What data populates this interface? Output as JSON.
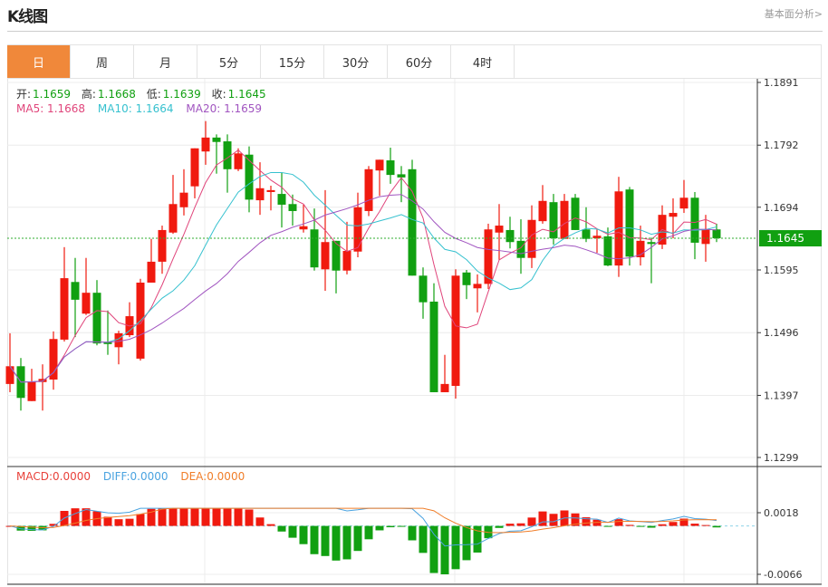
{
  "header": {
    "title": "K线图",
    "link": "基本面分析>"
  },
  "tabs": [
    {
      "label": "日",
      "active": true
    },
    {
      "label": "周"
    },
    {
      "label": "月"
    },
    {
      "label": "5分"
    },
    {
      "label": "15分"
    },
    {
      "label": "30分"
    },
    {
      "label": "60分"
    },
    {
      "label": "4时"
    }
  ],
  "ohlc_legend": {
    "open_label": "开:",
    "open": "1.1659",
    "high_label": "高:",
    "high": "1.1668",
    "low_label": "低:",
    "low": "1.1639",
    "close_label": "收:",
    "close": "1.1645"
  },
  "ma_legend": {
    "ma5": "MA5: 1.1668",
    "ma10": "MA10: 1.1664",
    "ma20": "MA20: 1.1659"
  },
  "macd_legend": {
    "macd": "MACD:0.0000",
    "diff": "DIFF:0.0000",
    "dea": "DEA:0.0000"
  },
  "colors": {
    "accent": "#f0883a",
    "up": "#f01a0f",
    "down": "#11a011",
    "ma5": "#e0457b",
    "ma10": "#36c1cf",
    "ma20": "#a155c0",
    "diff": "#4aa3e0",
    "dea": "#f07d28"
  },
  "chart_data": {
    "type": "candlestick",
    "price_axis": {
      "ticks": [
        "1.1891",
        "1.1792",
        "1.1694",
        "1.1595",
        "1.1496",
        "1.1397",
        "1.1299"
      ],
      "range": [
        1.1299,
        1.1891
      ]
    },
    "current_price": "1.1645",
    "macd_axis": {
      "ticks": [
        "0.0018",
        "-0.0066"
      ],
      "range": [
        -0.0066,
        0.0018
      ]
    },
    "candles": [
      [
        1.1415,
        1.1495,
        1.1402,
        1.1443
      ],
      [
        1.1443,
        1.1456,
        1.1373,
        1.1393
      ],
      [
        1.1388,
        1.1439,
        1.1388,
        1.1419
      ],
      [
        1.1418,
        1.1446,
        1.1373,
        1.1423
      ],
      [
        1.1422,
        1.1498,
        1.1406,
        1.1486
      ],
      [
        1.1485,
        1.1631,
        1.1482,
        1.1582
      ],
      [
        1.1576,
        1.1614,
        1.1489,
        1.1548
      ],
      [
        1.1526,
        1.1614,
        1.1524,
        1.1559
      ],
      [
        1.1559,
        1.1579,
        1.1476,
        1.1479
      ],
      [
        1.1481,
        1.1531,
        1.1461,
        1.1478
      ],
      [
        1.1473,
        1.1499,
        1.1446,
        1.1495
      ],
      [
        1.1492,
        1.1544,
        1.1489,
        1.1522
      ],
      [
        1.1455,
        1.1581,
        1.1452,
        1.1575
      ],
      [
        1.1575,
        1.1644,
        1.1575,
        1.1608
      ],
      [
        1.1608,
        1.1665,
        1.1589,
        1.1658
      ],
      [
        1.1654,
        1.1745,
        1.1652,
        1.1699
      ],
      [
        1.1694,
        1.1754,
        1.1681,
        1.1717
      ],
      [
        1.1727,
        1.1787,
        1.1708,
        1.1787
      ],
      [
        1.1782,
        1.183,
        1.1761,
        1.1804
      ],
      [
        1.1804,
        1.1809,
        1.1747,
        1.1797
      ],
      [
        1.1798,
        1.1809,
        1.1717,
        1.1754
      ],
      [
        1.1754,
        1.1787,
        1.1751,
        1.1779
      ],
      [
        1.1777,
        1.179,
        1.1686,
        1.1706
      ],
      [
        1.1705,
        1.1765,
        1.1682,
        1.1724
      ],
      [
        1.1718,
        1.1728,
        1.1689,
        1.1721
      ],
      [
        1.1715,
        1.1749,
        1.1662,
        1.1698
      ],
      [
        1.1699,
        1.1714,
        1.1665,
        1.1688
      ],
      [
        1.1659,
        1.1698,
        1.1654,
        1.1664
      ],
      [
        1.1659,
        1.1692,
        1.1594,
        1.1599
      ],
      [
        1.1596,
        1.1721,
        1.1562,
        1.1639
      ],
      [
        1.1641,
        1.1641,
        1.1558,
        1.1594
      ],
      [
        1.1594,
        1.1671,
        1.1588,
        1.1625
      ],
      [
        1.1624,
        1.1717,
        1.1615,
        1.1694
      ],
      [
        1.1688,
        1.1759,
        1.168,
        1.1754
      ],
      [
        1.1752,
        1.1769,
        1.1712,
        1.1769
      ],
      [
        1.1768,
        1.1788,
        1.1731,
        1.1745
      ],
      [
        1.1746,
        1.1759,
        1.1702,
        1.1741
      ],
      [
        1.1754,
        1.1769,
        1.1586,
        1.1586
      ],
      [
        1.1586,
        1.1599,
        1.1518,
        1.1544
      ],
      [
        1.1545,
        1.1574,
        1.1402,
        1.1402
      ],
      [
        1.1402,
        1.1461,
        1.1402,
        1.1415
      ],
      [
        1.1412,
        1.1596,
        1.1392,
        1.1586
      ],
      [
        1.1591,
        1.1595,
        1.1549,
        1.1571
      ],
      [
        1.1566,
        1.1588,
        1.1528,
        1.1573
      ],
      [
        1.1573,
        1.1668,
        1.1565,
        1.1659
      ],
      [
        1.1654,
        1.1699,
        1.1611,
        1.1665
      ],
      [
        1.1658,
        1.1679,
        1.1629,
        1.1639
      ],
      [
        1.1641,
        1.1675,
        1.1589,
        1.1614
      ],
      [
        1.1614,
        1.1697,
        1.1598,
        1.1674
      ],
      [
        1.1672,
        1.1729,
        1.1668,
        1.1704
      ],
      [
        1.1702,
        1.1715,
        1.1635,
        1.1645
      ],
      [
        1.1644,
        1.1715,
        1.1644,
        1.1704
      ],
      [
        1.1709,
        1.1715,
        1.1658,
        1.1658
      ],
      [
        1.1659,
        1.1694,
        1.1639,
        1.1644
      ],
      [
        1.1645,
        1.1659,
        1.1622,
        1.1649
      ],
      [
        1.1648,
        1.1662,
        1.1601,
        1.1602
      ],
      [
        1.1602,
        1.1742,
        1.1584,
        1.1719
      ],
      [
        1.1722,
        1.1726,
        1.1602,
        1.1616
      ],
      [
        1.1615,
        1.1665,
        1.1602,
        1.1641
      ],
      [
        1.1639,
        1.1646,
        1.1574,
        1.1636
      ],
      [
        1.1635,
        1.1697,
        1.1628,
        1.1682
      ],
      [
        1.1679,
        1.1708,
        1.1645,
        1.1685
      ],
      [
        1.1692,
        1.1737,
        1.1685,
        1.1709
      ],
      [
        1.1709,
        1.1718,
        1.1612,
        1.1638
      ],
      [
        1.1636,
        1.1682,
        1.1608,
        1.1659
      ],
      [
        1.1659,
        1.1668,
        1.1639,
        1.1645
      ]
    ],
    "candle_format": [
      "open",
      "high",
      "low",
      "close"
    ],
    "indicators": [
      "MA5",
      "MA10",
      "MA20",
      "MACD",
      "DIFF",
      "DEA"
    ]
  }
}
